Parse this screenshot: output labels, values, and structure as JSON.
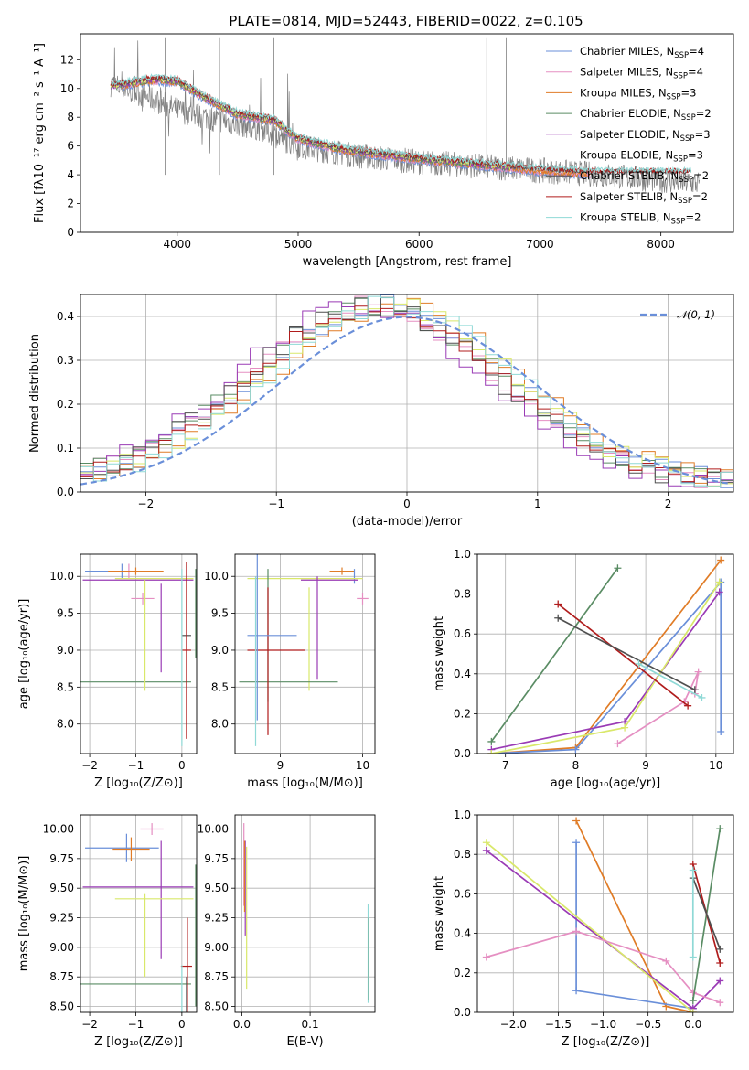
{
  "figure_title": "PLATE=0814, MJD=52443, FIBERID=0022, z=0.105",
  "colors": {
    "chabrier_miles": "#6a8fd9",
    "salpeter_miles": "#e58fc2",
    "kroupa_miles": "#e07c27",
    "chabrier_elodie": "#5a8c64",
    "salpeter_elodie": "#9a3bb5",
    "kroupa_elodie": "#d9e86a",
    "chabrier_stelib": "#4f4f4f",
    "salpeter_stelib": "#b01c1c",
    "kroupa_stelib": "#8fd9d6",
    "data": "#808080",
    "normal": "#6a8fd9"
  },
  "chart_data": [
    {
      "id": "spectrum",
      "type": "line",
      "title": "PLATE=0814, MJD=52443, FIBERID=0022, z=0.105",
      "xlabel": "wavelength [Angstrom, rest frame]",
      "ylabel": "Flux [fλ10⁻¹⁷ erg cm⁻² s⁻¹ A⁻¹]",
      "xlim": [
        3200,
        8600
      ],
      "ylim": [
        0,
        13.8
      ],
      "xticks": [
        4000,
        5000,
        6000,
        7000,
        8000
      ],
      "yticks": [
        0,
        2,
        4,
        6,
        8,
        10,
        12
      ],
      "grid": false,
      "legend": "top-right",
      "legend_entries": [
        {
          "label": "Chabrier MILES, N",
          "sub": "SSP",
          "suffix": "=4",
          "color_key": "chabrier_miles"
        },
        {
          "label": "Salpeter MILES, N",
          "sub": "SSP",
          "suffix": "=4",
          "color_key": "salpeter_miles"
        },
        {
          "label": "Kroupa MILES, N",
          "sub": "SSP",
          "suffix": "=3",
          "color_key": "kroupa_miles"
        },
        {
          "label": "Chabrier ELODIE, N",
          "sub": "SSP",
          "suffix": "=2",
          "color_key": "chabrier_elodie"
        },
        {
          "label": "Salpeter ELODIE, N",
          "sub": "SSP",
          "suffix": "=3",
          "color_key": "salpeter_elodie"
        },
        {
          "label": "Kroupa ELODIE, N",
          "sub": "SSP",
          "suffix": "=3",
          "color_key": "kroupa_elodie"
        },
        {
          "label": "Chabrier STELIB, N",
          "sub": "SSP",
          "suffix": "=2",
          "color_key": "chabrier_stelib"
        },
        {
          "label": "Salpeter STELIB, N",
          "sub": "SSP",
          "suffix": "=2",
          "color_key": "salpeter_stelib"
        },
        {
          "label": "Kroupa STELIB, N",
          "sub": "SSP",
          "suffix": "=2",
          "color_key": "kroupa_stelib"
        }
      ],
      "data_trend": {
        "x": [
          3450,
          3700,
          4000,
          4300,
          4700,
          5000,
          5500,
          6000,
          6500,
          7000,
          7500,
          8000,
          8300
        ],
        "y": [
          10.3,
          9.6,
          8.5,
          7.9,
          7.2,
          6.0,
          5.3,
          4.9,
          4.6,
          4.3,
          4.0,
          3.6,
          3.4
        ]
      },
      "model_trend": {
        "x": [
          3450,
          3650,
          3800,
          4000,
          4200,
          4500,
          4800,
          5000,
          5400,
          6000,
          6500,
          7000,
          7400
        ],
        "y": [
          10.1,
          10.4,
          10.6,
          10.5,
          9.5,
          8.2,
          7.8,
          6.5,
          5.7,
          5.1,
          4.7,
          4.3,
          4.1
        ]
      }
    },
    {
      "id": "residuals",
      "type": "histogram",
      "xlabel": "(data-model)/error",
      "ylabel": "Normed distribution",
      "xlim": [
        -2.5,
        2.5
      ],
      "ylim": [
        0,
        0.45
      ],
      "xticks": [
        -2,
        -1,
        0,
        1,
        2
      ],
      "yticks": [
        0.0,
        0.1,
        0.2,
        0.3,
        0.4
      ],
      "grid": true,
      "legend": "top-right",
      "legend_entry": "𝒩(0, 1)",
      "reference": {
        "mean": 0,
        "sigma": 1
      },
      "bin_width": 0.1,
      "series_centers": [
        -0.2,
        -0.3,
        -0.1,
        -0.25,
        -0.35,
        -0.15,
        -0.28,
        -0.22,
        -0.12
      ]
    },
    {
      "id": "age_vs_z",
      "type": "errorbar",
      "xlabel": "Z [log₁₀(Z/Z⊙)]",
      "ylabel": "age  [log₁₀(age/yr)]",
      "xlim": [
        -2.2,
        0.32
      ],
      "ylim": [
        7.6,
        10.3
      ],
      "xticks": [
        -2,
        -1,
        0
      ],
      "yticks": [
        8.0,
        8.5,
        9.0,
        9.5,
        10.0
      ],
      "grid": true,
      "points": [
        {
          "x": -1.3,
          "xerr": 0.8,
          "y": 10.07,
          "yerr": 0.1,
          "color_key": "chabrier_miles"
        },
        {
          "x": -1.15,
          "xerr": 0.1,
          "y": 10.07,
          "yerr": 0.1,
          "color_key": "salpeter_miles"
        },
        {
          "x": -0.85,
          "xerr": 0.25,
          "y": 9.7,
          "yerr": 0.08,
          "color_key": "salpeter_miles"
        },
        {
          "x": -1.0,
          "xerr": 0.6,
          "y": 10.07,
          "yerr": 0.05,
          "color_key": "kroupa_miles"
        },
        {
          "x": -1.0,
          "xerr": 1.2,
          "y": 8.57,
          "yerr": 0.0,
          "color_key": "chabrier_elodie"
        },
        {
          "x": 0.3,
          "xerr": 0.0,
          "y": 9.5,
          "yerr": 0.6,
          "color_key": "chabrier_elodie"
        },
        {
          "x": -0.95,
          "xerr": 1.2,
          "y": 9.95,
          "yerr": 0.0,
          "color_key": "salpeter_elodie"
        },
        {
          "x": -0.45,
          "xerr": 0.0,
          "y": 9.3,
          "yerr": 0.6,
          "color_key": "salpeter_elodie"
        },
        {
          "x": -0.6,
          "xerr": 0.85,
          "y": 9.97,
          "yerr": 0.0,
          "color_key": "kroupa_elodie"
        },
        {
          "x": -0.8,
          "xerr": 0.0,
          "y": 9.2,
          "yerr": 0.75,
          "color_key": "kroupa_elodie"
        },
        {
          "x": 0.1,
          "xerr": 0.1,
          "y": 9.2,
          "yerr": 0.0,
          "color_key": "chabrier_stelib"
        },
        {
          "x": 0.1,
          "xerr": 0.1,
          "y": 9.0,
          "yerr": 1.2,
          "color_key": "salpeter_stelib"
        },
        {
          "x": 0.0,
          "xerr": 0.0,
          "y": 8.9,
          "yerr": 1.2,
          "color_key": "kroupa_stelib"
        }
      ]
    },
    {
      "id": "age_vs_mass",
      "type": "errorbar",
      "xlabel": "mass [log₁₀(M/M⊙)]",
      "ylabel": "",
      "xlim": [
        8.45,
        10.15
      ],
      "ylim": [
        7.6,
        10.3
      ],
      "xticks": [
        9,
        10
      ],
      "yticks": [
        8.0,
        8.5,
        9.0,
        9.5,
        10.0
      ],
      "grid": true,
      "points": [
        {
          "x": 9.75,
          "xerr": 0.15,
          "y": 10.07,
          "yerr": 0.05,
          "color_key": "kroupa_miles"
        },
        {
          "x": 9.9,
          "xerr": 0.0,
          "y": 10.0,
          "yerr": 0.1,
          "color_key": "chabrier_miles"
        },
        {
          "x": 10.0,
          "xerr": 0.07,
          "y": 9.7,
          "yerr": 0.08,
          "color_key": "salpeter_miles"
        },
        {
          "x": 9.3,
          "xerr": 0.7,
          "y": 9.97,
          "yerr": 0.0,
          "color_key": "kroupa_elodie"
        },
        {
          "x": 9.6,
          "xerr": 0.35,
          "y": 9.95,
          "yerr": 0.0,
          "color_key": "salpeter_elodie"
        },
        {
          "x": 9.45,
          "xerr": 0.0,
          "y": 9.3,
          "yerr": 0.7,
          "color_key": "salpeter_elodie"
        },
        {
          "x": 9.35,
          "xerr": 0.0,
          "y": 9.15,
          "yerr": 0.7,
          "color_key": "kroupa_elodie"
        },
        {
          "x": 9.1,
          "xerr": 0.6,
          "y": 8.57,
          "yerr": 0.0,
          "color_key": "chabrier_elodie"
        },
        {
          "x": 8.85,
          "xerr": 0.0,
          "y": 9.2,
          "yerr": 0.9,
          "color_key": "chabrier_elodie"
        },
        {
          "x": 8.95,
          "xerr": 0.35,
          "y": 9.0,
          "yerr": 0.0,
          "color_key": "salpeter_stelib"
        },
        {
          "x": 8.85,
          "xerr": 0.0,
          "y": 8.85,
          "yerr": 1.0,
          "color_key": "salpeter_stelib"
        },
        {
          "x": 8.9,
          "xerr": 0.3,
          "y": 9.2,
          "yerr": 0.0,
          "color_key": "chabrier_miles"
        },
        {
          "x": 8.72,
          "xerr": 0.0,
          "y": 9.2,
          "yerr": 1.15,
          "color_key": "chabrier_miles"
        },
        {
          "x": 8.7,
          "xerr": 0.0,
          "y": 8.85,
          "yerr": 1.15,
          "color_key": "kroupa_stelib"
        }
      ]
    },
    {
      "id": "weight_vs_age",
      "type": "line",
      "xlabel": "age  [log₁₀(age/yr)]",
      "ylabel": "mass weight",
      "xlim": [
        6.6,
        10.25
      ],
      "ylim": [
        0,
        1
      ],
      "xticks": [
        7,
        8,
        9,
        10
      ],
      "yticks": [
        0.0,
        0.2,
        0.4,
        0.6,
        0.8,
        1.0
      ],
      "grid": true,
      "series": [
        {
          "color_key": "chabrier_elodie",
          "x": [
            6.8,
            8.6
          ],
          "y": [
            0.06,
            0.93
          ]
        },
        {
          "color_key": "kroupa_miles",
          "x": [
            6.8,
            8.0,
            10.07
          ],
          "y": [
            0.0,
            0.03,
            0.97
          ]
        },
        {
          "color_key": "chabrier_miles",
          "x": [
            6.8,
            8.0,
            10.07,
            10.07
          ],
          "y": [
            0.0,
            0.02,
            0.86,
            0.11
          ]
        },
        {
          "color_key": "salpeter_elodie",
          "x": [
            6.8,
            8.7,
            10.05
          ],
          "y": [
            0.02,
            0.16,
            0.81
          ]
        },
        {
          "color_key": "kroupa_elodie",
          "x": [
            6.8,
            8.7,
            10.05
          ],
          "y": [
            0.0,
            0.13,
            0.86
          ]
        },
        {
          "color_key": "salpeter_miles",
          "x": [
            8.6,
            9.55,
            9.75,
            9.7
          ],
          "y": [
            0.05,
            0.26,
            0.41,
            0.3
          ]
        },
        {
          "color_key": "salpeter_stelib",
          "x": [
            7.75,
            9.6
          ],
          "y": [
            0.75,
            0.24
          ]
        },
        {
          "color_key": "chabrier_stelib",
          "x": [
            7.75,
            9.7
          ],
          "y": [
            0.68,
            0.32
          ]
        },
        {
          "color_key": "kroupa_stelib",
          "x": [
            8.9,
            9.8
          ],
          "y": [
            0.45,
            0.28
          ]
        }
      ]
    },
    {
      "id": "mass_vs_z",
      "type": "errorbar",
      "xlabel": "Z [log₁₀(Z/Z⊙)]",
      "ylabel": "mass [log₁₀(M/M⊙)]",
      "xlim": [
        -2.2,
        0.32
      ],
      "ylim": [
        8.45,
        10.12
      ],
      "xticks": [
        -2,
        -1,
        0
      ],
      "yticks": [
        8.5,
        8.75,
        9.0,
        9.25,
        9.5,
        9.75,
        10.0
      ],
      "grid": true,
      "points": [
        {
          "x": -1.3,
          "xerr": 0.8,
          "y": 9.84,
          "yerr": 0.0,
          "color_key": "chabrier_miles"
        },
        {
          "x": -1.2,
          "xerr": 0.0,
          "y": 9.84,
          "yerr": 0.12,
          "color_key": "chabrier_miles"
        },
        {
          "x": -1.1,
          "xerr": 0.4,
          "y": 9.83,
          "yerr": 0.1,
          "color_key": "kroupa_miles"
        },
        {
          "x": -0.65,
          "xerr": 0.25,
          "y": 10.0,
          "yerr": 0.05,
          "color_key": "salpeter_miles"
        },
        {
          "x": -0.95,
          "xerr": 1.2,
          "y": 9.51,
          "yerr": 0.0,
          "color_key": "salpeter_elodie"
        },
        {
          "x": -0.45,
          "xerr": 0.0,
          "y": 9.4,
          "yerr": 0.5,
          "color_key": "salpeter_elodie"
        },
        {
          "x": -0.6,
          "xerr": 0.85,
          "y": 9.41,
          "yerr": 0.0,
          "color_key": "kroupa_elodie"
        },
        {
          "x": -0.8,
          "xerr": 0.0,
          "y": 9.1,
          "yerr": 0.35,
          "color_key": "kroupa_elodie"
        },
        {
          "x": -1.0,
          "xerr": 1.2,
          "y": 8.69,
          "yerr": 0.0,
          "color_key": "chabrier_elodie"
        },
        {
          "x": 0.3,
          "xerr": 0.0,
          "y": 9.1,
          "yerr": 0.6,
          "color_key": "chabrier_elodie"
        },
        {
          "x": 0.1,
          "xerr": 0.12,
          "y": 8.84,
          "yerr": 0.0,
          "color_key": "salpeter_stelib"
        },
        {
          "x": 0.12,
          "xerr": 0.0,
          "y": 8.85,
          "yerr": 0.4,
          "color_key": "salpeter_stelib"
        },
        {
          "x": 0.1,
          "xerr": 0.0,
          "y": 8.6,
          "yerr": 0.15,
          "color_key": "chabrier_stelib"
        },
        {
          "x": 0.0,
          "xerr": 0.0,
          "y": 8.65,
          "yerr": 0.2,
          "color_key": "kroupa_stelib"
        }
      ]
    },
    {
      "id": "mass_vs_ebv",
      "type": "errorbar",
      "xlabel": "E(B-V)",
      "ylabel": "",
      "xlim": [
        -0.01,
        0.195
      ],
      "ylim": [
        8.45,
        10.12
      ],
      "xticks": [
        0.0,
        0.1
      ],
      "yticks": [
        8.5,
        8.75,
        9.0,
        9.25,
        9.5,
        9.75,
        10.0
      ],
      "grid": true,
      "points": [
        {
          "x": 0.003,
          "xerr": 0.0,
          "y": 9.7,
          "yerr": 0.35,
          "color_key": "salpeter_miles"
        },
        {
          "x": 0.005,
          "xerr": 0.0,
          "y": 9.5,
          "yerr": 0.4,
          "color_key": "salpeter_elodie"
        },
        {
          "x": 0.007,
          "xerr": 0.0,
          "y": 9.25,
          "yerr": 0.6,
          "color_key": "kroupa_elodie"
        },
        {
          "x": 0.004,
          "xerr": 0.0,
          "y": 9.6,
          "yerr": 0.3,
          "color_key": "kroupa_miles"
        },
        {
          "x": 0.185,
          "xerr": 0.0,
          "y": 8.95,
          "yerr": 0.42,
          "color_key": "kroupa_stelib"
        },
        {
          "x": 0.186,
          "xerr": 0.0,
          "y": 8.9,
          "yerr": 0.35,
          "color_key": "chabrier_elodie"
        }
      ]
    },
    {
      "id": "weight_vs_z",
      "type": "line",
      "xlabel": "Z [log₁₀(Z/Z⊙)]",
      "ylabel": "mass weight",
      "xlim": [
        -2.4,
        0.45
      ],
      "ylim": [
        0,
        1
      ],
      "xticks": [
        -2.0,
        -1.5,
        -1.0,
        -0.5,
        0.0
      ],
      "yticks": [
        0.0,
        0.2,
        0.4,
        0.6,
        0.8,
        1.0
      ],
      "grid": true,
      "series": [
        {
          "color_key": "kroupa_miles",
          "x": [
            -1.3,
            -0.3,
            0.0
          ],
          "y": [
            0.97,
            0.03,
            0.0
          ]
        },
        {
          "color_key": "chabrier_miles",
          "x": [
            -1.3,
            -1.3,
            0.0
          ],
          "y": [
            0.86,
            0.11,
            0.02
          ]
        },
        {
          "color_key": "salpeter_elodie",
          "x": [
            -2.3,
            0.0,
            0.3
          ],
          "y": [
            0.82,
            0.02,
            0.16
          ]
        },
        {
          "color_key": "kroupa_elodie",
          "x": [
            -2.3,
            0.0
          ],
          "y": [
            0.86,
            0.0
          ]
        },
        {
          "color_key": "salpeter_miles",
          "x": [
            -2.3,
            -1.3,
            -0.3,
            0.0,
            0.3
          ],
          "y": [
            0.28,
            0.41,
            0.26,
            0.1,
            0.05
          ]
        },
        {
          "color_key": "chabrier_elodie",
          "x": [
            0.0,
            0.3
          ],
          "y": [
            0.06,
            0.93
          ]
        },
        {
          "color_key": "salpeter_stelib",
          "x": [
            0.0,
            0.3
          ],
          "y": [
            0.75,
            0.25
          ]
        },
        {
          "color_key": "chabrier_stelib",
          "x": [
            0.0,
            0.3
          ],
          "y": [
            0.68,
            0.32
          ]
        },
        {
          "color_key": "kroupa_stelib",
          "x": [
            0.0,
            0.0
          ],
          "y": [
            0.72,
            0.28
          ]
        }
      ]
    }
  ]
}
